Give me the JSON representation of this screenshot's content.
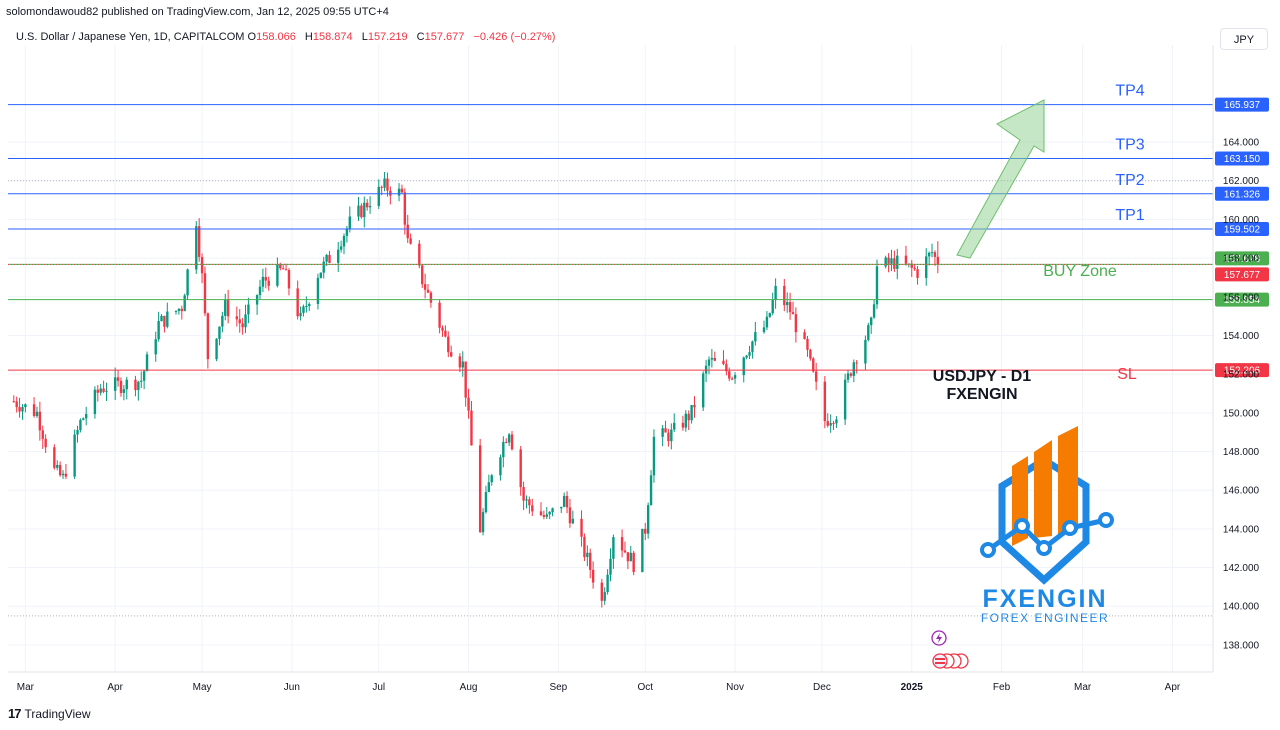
{
  "header": {
    "published": "solomondawoud82 published on TradingView.com, Jan 12, 2025 09:55 UTC+4",
    "symbol": "U.S. Dollar / Japanese Yen, 1D, CAPITALCOM",
    "o_label": "O",
    "o_value": "158.066",
    "h_label": "H",
    "h_value": "158.874",
    "l_label": "L",
    "l_value": "157.219",
    "c_label": "C",
    "c_value": "157.677",
    "change": "−0.426 (−0.27%)",
    "currency": "JPY"
  },
  "footer": {
    "brand": "TradingView",
    "logo": "17"
  },
  "annotations": {
    "title_line1": "USDJPY - D1",
    "title_line2": "FXENGIN",
    "buy_zone": "BUY Zone",
    "sl": "SL",
    "logo_name": "FXENGIN",
    "logo_tagline": "FOREX ENGINEER"
  },
  "colors": {
    "up": "#089981",
    "down": "#f23645",
    "tp": "#2962ff",
    "buy": "#4caf50",
    "sl": "#f23645",
    "arrow": "#8bd08b",
    "logo_orange": "#f57c00",
    "logo_blue": "#1e88e5"
  },
  "chart_data": {
    "type": "candlestick",
    "yaxis": {
      "ticks": [
        138,
        140,
        142,
        144,
        146,
        148,
        150,
        152,
        154,
        156,
        158,
        160,
        162,
        164
      ],
      "tick_labels": [
        "138.000",
        "140.000",
        "142.000",
        "144.000",
        "146.000",
        "148.000",
        "150.000",
        "152.000",
        "154.000",
        "156.000",
        "158.000",
        "160.000",
        "162.000",
        "164.000"
      ],
      "ylim": [
        136.6,
        168.5
      ]
    },
    "xaxis": {
      "labels": [
        {
          "text": "Mar",
          "date": "2024-03-01"
        },
        {
          "text": "Apr",
          "date": "2024-04-01"
        },
        {
          "text": "May",
          "date": "2024-05-01"
        },
        {
          "text": "Jun",
          "date": "2024-06-01"
        },
        {
          "text": "Jul",
          "date": "2024-07-01"
        },
        {
          "text": "Aug",
          "date": "2024-08-01"
        },
        {
          "text": "Sep",
          "date": "2024-09-01"
        },
        {
          "text": "Oct",
          "date": "2024-10-01"
        },
        {
          "text": "Nov",
          "date": "2024-11-01"
        },
        {
          "text": "Dec",
          "date": "2024-12-01"
        },
        {
          "text": "2025",
          "date": "2025-01-01"
        },
        {
          "text": "Feb",
          "date": "2025-02-01"
        },
        {
          "text": "Mar",
          "date": "2025-03-01"
        },
        {
          "text": "Apr",
          "date": "2025-04-01"
        }
      ],
      "range": [
        "2024-02-24",
        "2025-04-15"
      ]
    },
    "price_path": [
      [
        "2024-02-26",
        150.6
      ],
      [
        "2024-03-05",
        150.0
      ],
      [
        "2024-03-11",
        147.0
      ],
      [
        "2024-03-14",
        146.6
      ],
      [
        "2024-03-20",
        149.5
      ],
      [
        "2024-03-27",
        151.3
      ],
      [
        "2024-04-05",
        151.5
      ],
      [
        "2024-04-10",
        151.7
      ],
      [
        "2024-04-16",
        154.6
      ],
      [
        "2024-04-24",
        155.5
      ],
      [
        "2024-04-29",
        160.0
      ],
      [
        "2024-05-01",
        157.0
      ],
      [
        "2024-05-03",
        152.9
      ],
      [
        "2024-05-09",
        155.5
      ],
      [
        "2024-05-15",
        154.5
      ],
      [
        "2024-05-22",
        156.8
      ],
      [
        "2024-05-29",
        157.4
      ],
      [
        "2024-06-04",
        154.8
      ],
      [
        "2024-06-10",
        157.2
      ],
      [
        "2024-06-14",
        158.0
      ],
      [
        "2024-06-21",
        159.8
      ],
      [
        "2024-06-28",
        161.0
      ],
      [
        "2024-07-03",
        161.7
      ],
      [
        "2024-07-09",
        161.3
      ],
      [
        "2024-07-11",
        158.8
      ],
      [
        "2024-07-17",
        156.5
      ],
      [
        "2024-07-24",
        153.8
      ],
      [
        "2024-07-30",
        152.5
      ],
      [
        "2024-08-05",
        144.0
      ],
      [
        "2024-08-09",
        147.0
      ],
      [
        "2024-08-15",
        149.2
      ],
      [
        "2024-08-20",
        145.5
      ],
      [
        "2024-08-28",
        144.5
      ],
      [
        "2024-09-03",
        145.5
      ],
      [
        "2024-09-11",
        142.4
      ],
      [
        "2024-09-16",
        140.2
      ],
      [
        "2024-09-20",
        143.8
      ],
      [
        "2024-09-27",
        142.2
      ],
      [
        "2024-10-01",
        144.0
      ],
      [
        "2024-10-04",
        148.7
      ],
      [
        "2024-10-10",
        148.9
      ],
      [
        "2024-10-17",
        150.0
      ],
      [
        "2024-10-23",
        152.7
      ],
      [
        "2024-10-31",
        152.0
      ],
      [
        "2024-11-06",
        153.5
      ],
      [
        "2024-11-12",
        154.6
      ],
      [
        "2024-11-15",
        156.3
      ],
      [
        "2024-11-20",
        155.3
      ],
      [
        "2024-11-26",
        153.0
      ],
      [
        "2024-12-02",
        149.6
      ],
      [
        "2024-12-06",
        150.0
      ],
      [
        "2024-12-12",
        152.7
      ],
      [
        "2024-12-18",
        154.5
      ],
      [
        "2024-12-20",
        157.5
      ],
      [
        "2024-12-26",
        157.8
      ],
      [
        "2025-01-03",
        157.3
      ],
      [
        "2025-01-08",
        158.3
      ],
      [
        "2025-01-10",
        157.7
      ]
    ],
    "last_candle": {
      "open": 158.066,
      "high": 158.874,
      "low": 157.219,
      "close": 157.677
    },
    "levels": [
      {
        "name": "TP4",
        "value": 165.937,
        "label": "165.937"
      },
      {
        "name": "TP3",
        "value": 163.15,
        "label": "163.150"
      },
      {
        "name": "TP2",
        "value": 161.326,
        "label": "161.326"
      },
      {
        "name": "TP1",
        "value": 159.502,
        "label": "159.502"
      },
      {
        "name": "entry",
        "value": 157.678,
        "label": "157.678"
      },
      {
        "name": "last",
        "value": 157.677,
        "label": "157.677"
      },
      {
        "name": "BUY Zone",
        "value": 155.854,
        "label": "155.854"
      },
      {
        "name": "SL",
        "value": 152.206,
        "label": "152.206"
      }
    ],
    "dotted_levels": [
      162.0,
      139.5
    ]
  }
}
